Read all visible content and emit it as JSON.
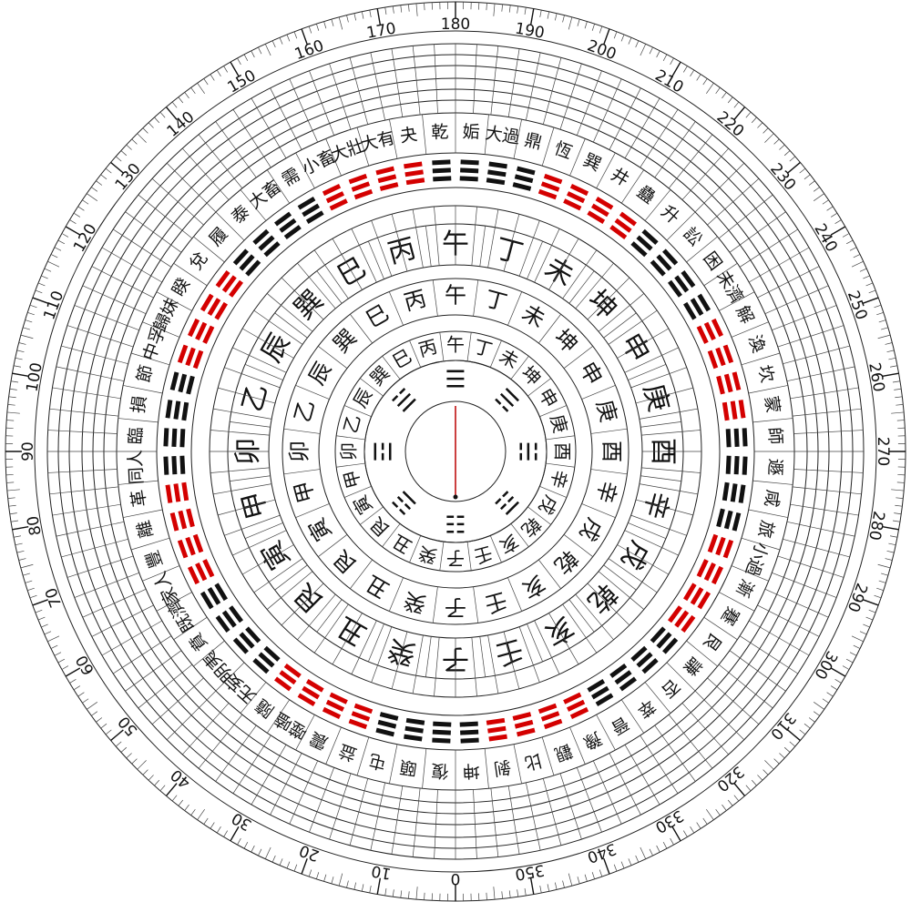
{
  "dial": {
    "degrees": [
      0,
      10,
      20,
      30,
      40,
      50,
      60,
      70,
      80,
      90,
      100,
      110,
      120,
      130,
      140,
      150,
      160,
      170,
      180,
      190,
      200,
      210,
      220,
      230,
      240,
      250,
      260,
      270,
      280,
      290,
      300,
      310,
      320,
      330,
      340,
      350
    ],
    "hexagrams": [
      "乾",
      "姤",
      "大過",
      "鼎",
      "恆",
      "巽",
      "井",
      "蠱",
      "升",
      "訟",
      "困",
      "未濟",
      "解",
      "渙",
      "坎",
      "蒙",
      "師",
      "遯",
      "咸",
      "旅",
      "小過",
      "漸",
      "蹇",
      "艮",
      "謙",
      "否",
      "萃",
      "晉",
      "豫",
      "觀",
      "比",
      "剝",
      "坤",
      "復",
      "頤",
      "屯",
      "益",
      "震",
      "噬嗑",
      "隨",
      "无妄",
      "明夷",
      "賁",
      "既濟",
      "家人",
      "豐",
      "離",
      "革",
      "同人",
      "臨",
      "損",
      "節",
      "中孚",
      "歸妹",
      "睽",
      "兌",
      "履",
      "泰",
      "大畜",
      "需",
      "小畜",
      "大壯",
      "大有",
      "夬"
    ],
    "mountains": [
      {
        "label": "子",
        "color": "#d40000"
      },
      {
        "label": "癸",
        "color": "#d40000"
      },
      {
        "label": "丑",
        "color": "#111111"
      },
      {
        "label": "艮",
        "color": "#111111"
      },
      {
        "label": "寅",
        "color": "#d40000"
      },
      {
        "label": "甲",
        "color": "#d40000"
      },
      {
        "label": "卯",
        "color": "#111111"
      },
      {
        "label": "乙",
        "color": "#d40000"
      },
      {
        "label": "辰",
        "color": "#d40000"
      },
      {
        "label": "巽",
        "color": "#111111"
      },
      {
        "label": "巳",
        "color": "#111111"
      },
      {
        "label": "丙",
        "color": "#111111"
      },
      {
        "label": "午",
        "color": "#d40000"
      },
      {
        "label": "丁",
        "color": "#111111"
      },
      {
        "label": "未",
        "color": "#111111"
      },
      {
        "label": "坤",
        "color": "#d40000"
      },
      {
        "label": "申",
        "color": "#d40000"
      },
      {
        "label": "庚",
        "color": "#111111"
      },
      {
        "label": "酉",
        "color": "#111111"
      },
      {
        "label": "辛",
        "color": "#111111"
      },
      {
        "label": "戌",
        "color": "#d40000"
      },
      {
        "label": "乾",
        "color": "#d40000"
      },
      {
        "label": "亥",
        "color": "#d40000"
      },
      {
        "label": "壬",
        "color": "#d40000"
      }
    ],
    "trigrams": [
      "☷",
      "☳",
      "☲",
      "☱",
      "☰",
      "☴",
      "☵",
      "☶"
    ]
  }
}
